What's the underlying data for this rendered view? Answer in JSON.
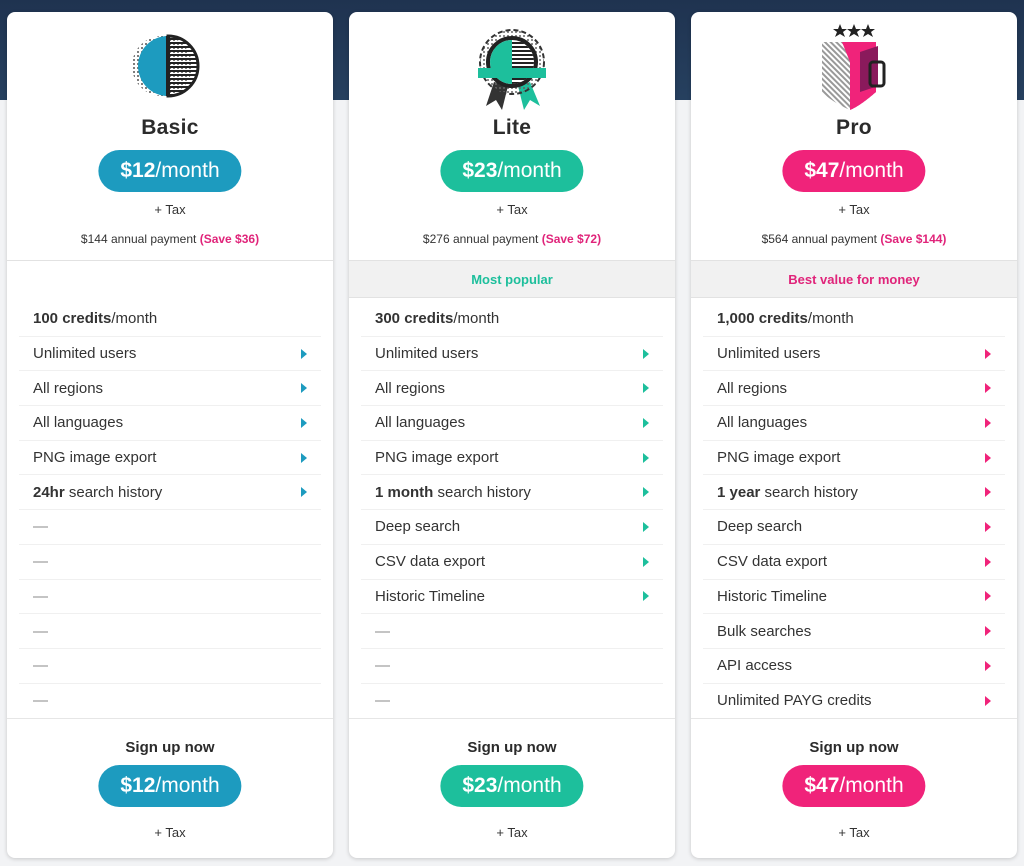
{
  "colors": {
    "basic": "#1d9bbf",
    "lite": "#1dbf9c",
    "pro": "#f0237a",
    "pink_text": "#e0247a"
  },
  "plans": [
    {
      "name": "Basic",
      "price": "$12",
      "per": "/month",
      "tax": "+ Tax",
      "annual": "$144 annual payment",
      "save": "(Save $36)",
      "badge": "",
      "features": [
        {
          "bold": "100 credits",
          "rest": "/month",
          "arrow": false
        },
        {
          "bold": "",
          "rest": "Unlimited users",
          "arrow": true
        },
        {
          "bold": "",
          "rest": "All regions",
          "arrow": true
        },
        {
          "bold": "",
          "rest": "All languages",
          "arrow": true
        },
        {
          "bold": "",
          "rest": "PNG image export",
          "arrow": true
        },
        {
          "bold": "24hr",
          "rest": " search history",
          "arrow": true
        },
        {
          "bold": "",
          "rest": "—",
          "arrow": false
        },
        {
          "bold": "",
          "rest": "—",
          "arrow": false
        },
        {
          "bold": "",
          "rest": "—",
          "arrow": false
        },
        {
          "bold": "",
          "rest": "—",
          "arrow": false
        },
        {
          "bold": "",
          "rest": "—",
          "arrow": false
        },
        {
          "bold": "",
          "rest": "—",
          "arrow": false
        }
      ],
      "signup": "Sign up now"
    },
    {
      "name": "Lite",
      "price": "$23",
      "per": "/month",
      "tax": "+ Tax",
      "annual": "$276 annual payment",
      "save": "(Save $72)",
      "badge": "Most popular",
      "features": [
        {
          "bold": "300 credits",
          "rest": "/month",
          "arrow": false
        },
        {
          "bold": "",
          "rest": "Unlimited users",
          "arrow": true
        },
        {
          "bold": "",
          "rest": "All regions",
          "arrow": true
        },
        {
          "bold": "",
          "rest": "All languages",
          "arrow": true
        },
        {
          "bold": "",
          "rest": "PNG image export",
          "arrow": true
        },
        {
          "bold": "1 month",
          "rest": " search history",
          "arrow": true
        },
        {
          "bold": "",
          "rest": "Deep search",
          "arrow": true
        },
        {
          "bold": "",
          "rest": "CSV data export",
          "arrow": true
        },
        {
          "bold": "",
          "rest": "Historic Timeline",
          "arrow": true
        },
        {
          "bold": "",
          "rest": "—",
          "arrow": false
        },
        {
          "bold": "",
          "rest": "—",
          "arrow": false
        },
        {
          "bold": "",
          "rest": "—",
          "arrow": false
        }
      ],
      "signup": "Sign up now"
    },
    {
      "name": "Pro",
      "price": "$47",
      "per": "/month",
      "tax": "+ Tax",
      "annual": "$564 annual payment",
      "save": "(Save $144)",
      "badge": "Best value for money",
      "features": [
        {
          "bold": "1,000 credits",
          "rest": "/month",
          "arrow": false
        },
        {
          "bold": "",
          "rest": "Unlimited users",
          "arrow": true
        },
        {
          "bold": "",
          "rest": "All regions",
          "arrow": true
        },
        {
          "bold": "",
          "rest": "All languages",
          "arrow": true
        },
        {
          "bold": "",
          "rest": "PNG image export",
          "arrow": true
        },
        {
          "bold": "1 year",
          "rest": " search history",
          "arrow": true
        },
        {
          "bold": "",
          "rest": "Deep search",
          "arrow": true
        },
        {
          "bold": "",
          "rest": "CSV data export",
          "arrow": true
        },
        {
          "bold": "",
          "rest": "Historic Timeline",
          "arrow": true
        },
        {
          "bold": "",
          "rest": "Bulk searches",
          "arrow": true
        },
        {
          "bold": "",
          "rest": "API access",
          "arrow": true
        },
        {
          "bold": "",
          "rest": "Unlimited PAYG credits",
          "arrow": true
        }
      ],
      "signup": "Sign up now"
    }
  ]
}
